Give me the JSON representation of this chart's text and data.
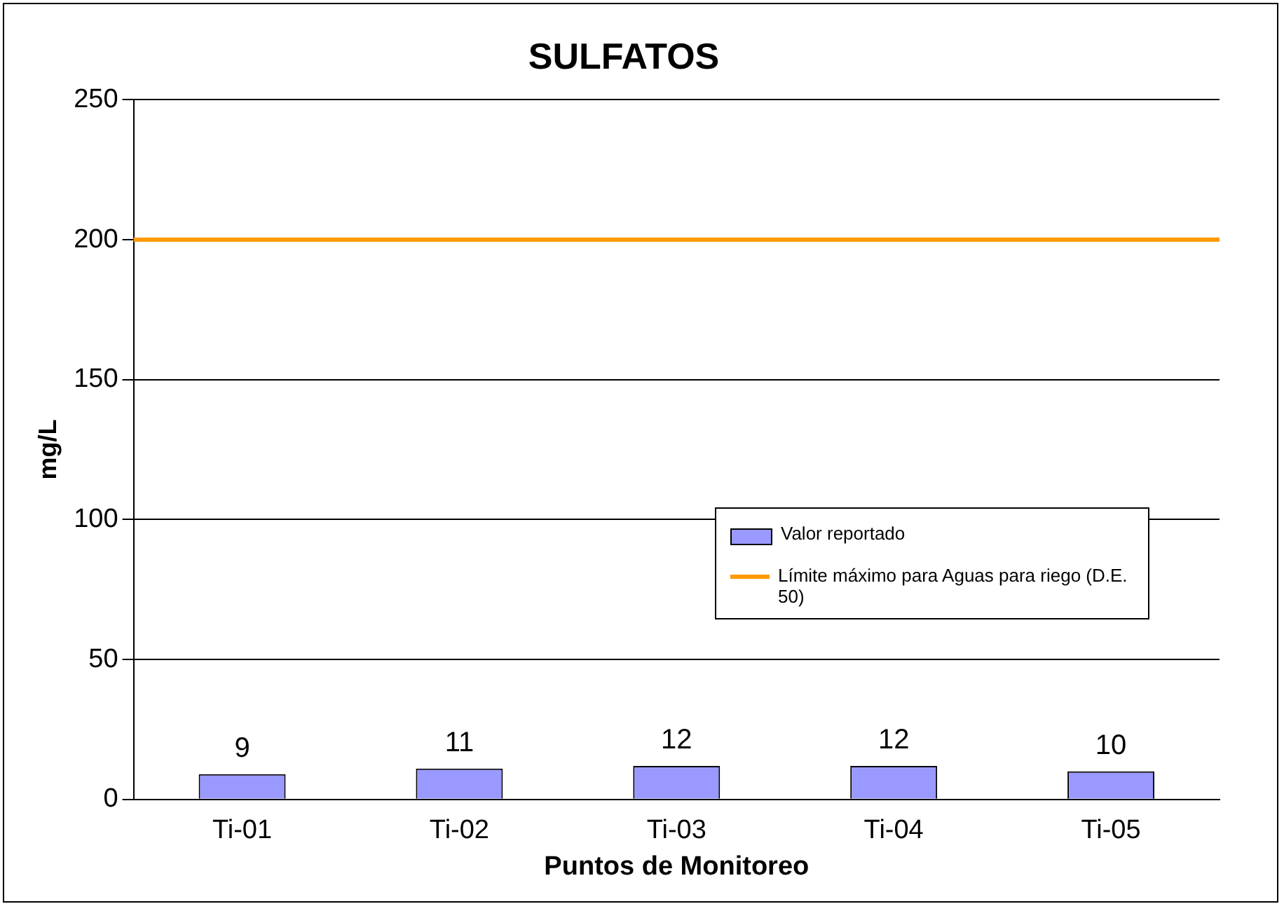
{
  "chart_data": {
    "type": "bar",
    "title": "SULFATOS",
    "xlabel": "Puntos de Monitoreo",
    "ylabel": "mg/L",
    "categories": [
      "Ti-01",
      "Ti-02",
      "Ti-03",
      "Ti-04",
      "Ti-05"
    ],
    "series": [
      {
        "name": "Valor reportado",
        "color": "#9999ff",
        "values": [
          9,
          11,
          12,
          12,
          10
        ]
      }
    ],
    "ylim": [
      0,
      250
    ],
    "yticks": [
      0,
      50,
      100,
      150,
      200,
      250
    ],
    "grid": "y",
    "data_labels": true,
    "legend": "right",
    "ref_lines": [
      {
        "axis": "y",
        "value": 200,
        "label": "Límite máximo para Aguas para riego (D.E. 50)",
        "color": "#ff9900"
      }
    ]
  }
}
